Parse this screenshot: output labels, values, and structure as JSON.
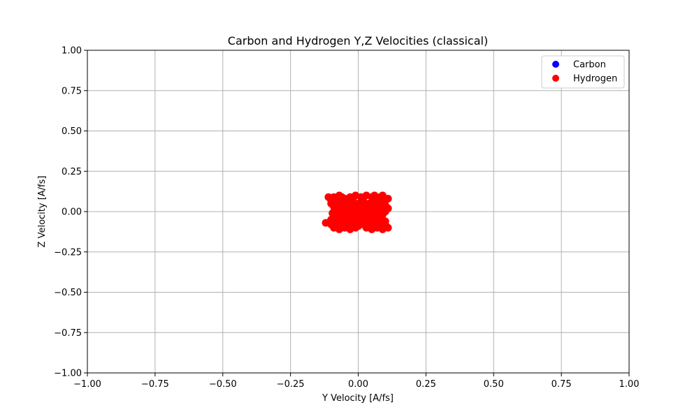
{
  "chart_data": {
    "type": "scatter",
    "title": "Carbon and Hydrogen Y,Z Velocities (classical)",
    "xlabel": "Y Velocity [A/fs]",
    "ylabel": "Z Velocity [A/fs]",
    "xlim": [
      -1.0,
      1.0
    ],
    "ylim": [
      -1.0,
      1.0
    ],
    "xticks": [
      "−1.00",
      "−0.75",
      "−0.50",
      "−0.25",
      "0.00",
      "0.25",
      "0.50",
      "0.75",
      "1.00"
    ],
    "yticks": [
      "−1.00",
      "−0.75",
      "−0.50",
      "−0.25",
      "0.00",
      "0.25",
      "0.50",
      "0.75",
      "1.00"
    ],
    "grid": true,
    "legend_position": "top-right",
    "series": [
      {
        "name": "Carbon",
        "color": "#0000ff",
        "points": [
          [
            0.0,
            0.0
          ],
          [
            0.002,
            -0.003
          ],
          [
            -0.003,
            0.002
          ],
          [
            0.004,
            0.003
          ],
          [
            -0.002,
            -0.004
          ]
        ]
      },
      {
        "name": "Hydrogen",
        "color": "#ff0000",
        "points": [
          [
            -0.11,
            0.09
          ],
          [
            -0.1,
            0.07
          ],
          [
            -0.09,
            0.09
          ],
          [
            -0.08,
            0.08
          ],
          [
            -0.07,
            0.1
          ],
          [
            -0.06,
            0.09
          ],
          [
            -0.05,
            0.08
          ],
          [
            -0.03,
            0.09
          ],
          [
            -0.02,
            0.08
          ],
          [
            -0.01,
            0.1
          ],
          [
            0.01,
            0.09
          ],
          [
            0.03,
            0.1
          ],
          [
            0.05,
            0.09
          ],
          [
            0.06,
            0.1
          ],
          [
            0.08,
            0.09
          ],
          [
            0.09,
            0.1
          ],
          [
            0.1,
            0.08
          ],
          [
            0.11,
            0.08
          ],
          [
            -0.1,
            0.05
          ],
          [
            -0.08,
            0.05
          ],
          [
            -0.06,
            0.06
          ],
          [
            -0.04,
            0.05
          ],
          [
            -0.02,
            0.06
          ],
          [
            0.0,
            0.05
          ],
          [
            0.02,
            0.06
          ],
          [
            0.04,
            0.05
          ],
          [
            0.06,
            0.06
          ],
          [
            0.08,
            0.05
          ],
          [
            0.1,
            0.04
          ],
          [
            -0.09,
            0.03
          ],
          [
            -0.07,
            0.02
          ],
          [
            -0.05,
            0.03
          ],
          [
            -0.03,
            0.02
          ],
          [
            -0.01,
            0.03
          ],
          [
            0.01,
            0.02
          ],
          [
            0.03,
            0.03
          ],
          [
            0.05,
            0.02
          ],
          [
            0.07,
            0.03
          ],
          [
            0.09,
            0.02
          ],
          [
            0.11,
            0.02
          ],
          [
            -0.08,
            0.0
          ],
          [
            -0.06,
            0.01
          ],
          [
            -0.04,
            -0.01
          ],
          [
            -0.02,
            0.0
          ],
          [
            0.0,
            0.01
          ],
          [
            0.02,
            -0.01
          ],
          [
            0.04,
            0.0
          ],
          [
            0.06,
            0.01
          ],
          [
            0.08,
            -0.01
          ],
          [
            0.1,
            0.0
          ],
          [
            -0.09,
            -0.03
          ],
          [
            -0.07,
            -0.02
          ],
          [
            -0.05,
            -0.03
          ],
          [
            -0.03,
            -0.02
          ],
          [
            -0.01,
            -0.03
          ],
          [
            0.01,
            -0.02
          ],
          [
            0.03,
            -0.03
          ],
          [
            0.05,
            -0.02
          ],
          [
            0.07,
            -0.03
          ],
          [
            0.09,
            -0.02
          ],
          [
            -0.1,
            -0.05
          ],
          [
            -0.08,
            -0.05
          ],
          [
            -0.06,
            -0.06
          ],
          [
            -0.04,
            -0.05
          ],
          [
            -0.02,
            -0.06
          ],
          [
            0.0,
            -0.05
          ],
          [
            0.02,
            -0.06
          ],
          [
            0.04,
            -0.05
          ],
          [
            0.06,
            -0.06
          ],
          [
            0.08,
            -0.05
          ],
          [
            0.1,
            -0.06
          ],
          [
            -0.12,
            -0.07
          ],
          [
            -0.1,
            -0.08
          ],
          [
            -0.09,
            -0.07
          ],
          [
            -0.07,
            -0.09
          ],
          [
            -0.06,
            -0.08
          ],
          [
            -0.04,
            -0.09
          ],
          [
            -0.02,
            -0.08
          ],
          [
            0.0,
            -0.09
          ],
          [
            0.02,
            -0.08
          ],
          [
            0.04,
            -0.09
          ],
          [
            0.06,
            -0.08
          ],
          [
            0.08,
            -0.09
          ],
          [
            0.1,
            -0.08
          ],
          [
            0.11,
            -0.1
          ],
          [
            -0.09,
            -0.1
          ],
          [
            -0.07,
            -0.11
          ],
          [
            -0.05,
            -0.1
          ],
          [
            -0.03,
            -0.11
          ],
          [
            -0.01,
            -0.1
          ],
          [
            0.03,
            -0.1
          ],
          [
            0.05,
            -0.11
          ],
          [
            0.07,
            -0.1
          ],
          [
            0.09,
            -0.11
          ],
          [
            -0.075,
            0.07
          ],
          [
            -0.035,
            0.04
          ],
          [
            0.015,
            0.07
          ],
          [
            0.045,
            0.04
          ],
          [
            0.085,
            0.07
          ],
          [
            -0.055,
            -0.04
          ],
          [
            -0.015,
            -0.07
          ],
          [
            0.035,
            -0.04
          ],
          [
            0.075,
            -0.07
          ],
          [
            -0.095,
            -0.01
          ]
        ]
      }
    ]
  }
}
